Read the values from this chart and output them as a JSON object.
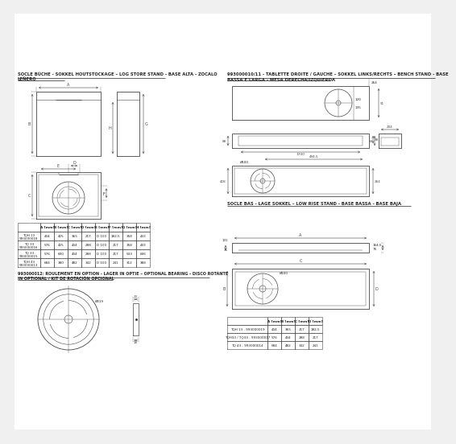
{
  "bg_color": "#f0f0f0",
  "inner_bg": "#ffffff",
  "line_color": "#444444",
  "text_color": "#222222",
  "title_left": "SOCLE BÛCHE - SOKKEL HOUTSTOCKAGE – LOG STORE STAND - BASE ALTA - ZÓCALO\nLEÑERO",
  "title_right": "993000010/11 - TABLETTE DROITE / GAUCHE – SOKKEL LINKS/RECHTS – BENCH STAND - BASE\nBASSA E LARGA - MESA DERECHA/IZQUIERDA",
  "title_bottom_right": "SOCLE BAS - LAGE SOKKEL – LOW RISE STAND - BASE BASSA - BASE BAJA",
  "title_bearing": "993000012: ROULEMENT EN OPTION - LAGER IN OPTIE – OPTIONAL BEARING - DISCO ROTANTE\nIN OPTIONAL / KIT DE ROTACIÓN OPCIONAL",
  "table1_headers": [
    "",
    "A [mm]",
    "B [mm]",
    "C [mm]",
    "D [mm]",
    "E [mm]",
    "F [mm]",
    "G [mm]",
    "H [mm]"
  ],
  "table1_col_widths": [
    28,
    17,
    17,
    17,
    17,
    17,
    17,
    17,
    17
  ],
  "table1_rows": [
    [
      "TQH 13\n993000018",
      "434",
      "425",
      "365",
      "217",
      "D 100",
      "182,5",
      "358",
      "433"
    ],
    [
      "TQ 33\n993000016",
      "576",
      "425",
      "434",
      "288",
      "D 100",
      "217",
      "358",
      "433"
    ],
    [
      "TQ 33\n993000015",
      "576",
      "600",
      "434",
      "288",
      "D 100",
      "217",
      "533",
      "606"
    ],
    [
      "TQH 43\n993000013",
      "684",
      "380",
      "482",
      "342",
      "D 100",
      "241",
      "312",
      "388"
    ]
  ],
  "table2_headers": [
    "",
    "A [mm]",
    "B [mm]",
    "C [mm]",
    "D [mm]"
  ],
  "table2_col_widths": [
    50,
    17,
    17,
    17,
    17
  ],
  "table2_rows": [
    [
      "TQH 13 - 993000019",
      "434",
      "365",
      "217",
      "182,5"
    ],
    [
      "TQH33 / TQ33 - 993000017",
      "576",
      "434",
      "288",
      "217"
    ],
    [
      "TQ 43 - 993000014",
      "684",
      "482",
      "342",
      "241"
    ]
  ]
}
